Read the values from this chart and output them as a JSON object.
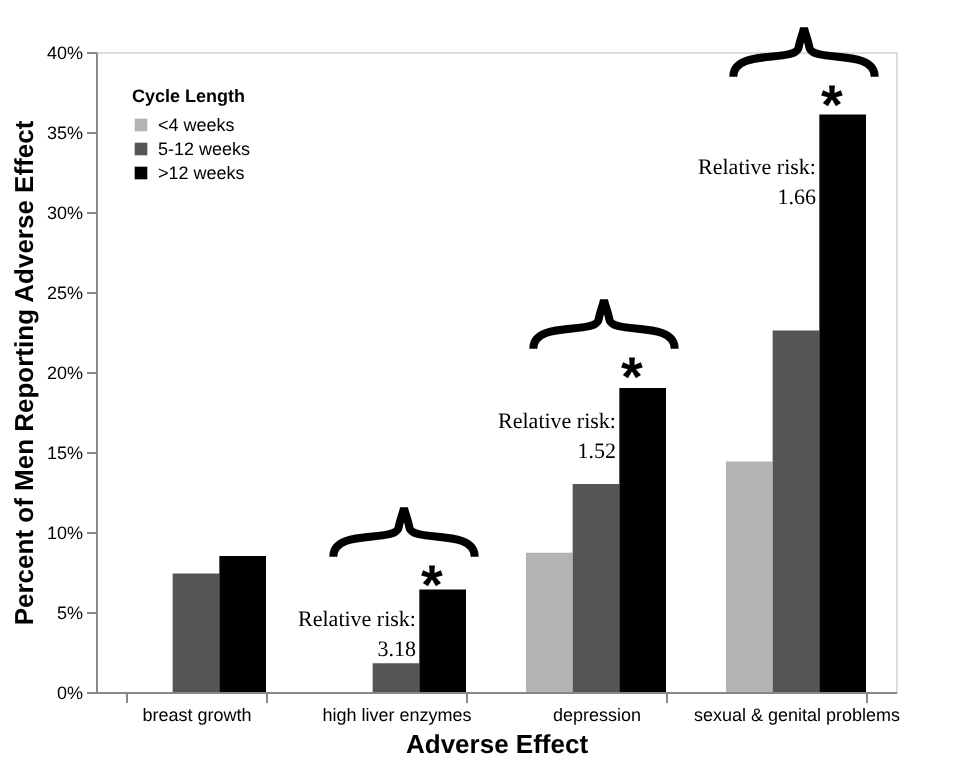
{
  "chart_data": {
    "type": "bar",
    "xlabel": "Adverse Effect",
    "ylabel": "Percent of Men Reporting Adverse Effect",
    "legend_title": "Cycle Length",
    "legend": "top left",
    "grid": false,
    "categories": [
      "breast growth",
      "high liver enzymes",
      "depression",
      "sexual & genital problems"
    ],
    "series": [
      {
        "name": "<4 weeks",
        "color": "#b3b3b3",
        "values": [
          null,
          null,
          8.7,
          14.4
        ]
      },
      {
        "name": "5-12 weeks",
        "color": "#555555",
        "values": [
          7.4,
          1.8,
          13.0,
          22.6
        ]
      },
      {
        "name": ">12 weeks",
        "color": "#000000",
        "values": [
          8.5,
          6.4,
          19.0,
          36.1
        ]
      }
    ],
    "ylim": [
      0,
      40
    ],
    "yticks": [
      {
        "value": 0,
        "label": "0%"
      },
      {
        "value": 5,
        "label": "5%"
      },
      {
        "value": 10,
        "label": "10%"
      },
      {
        "value": 15,
        "label": "15%"
      },
      {
        "value": 20,
        "label": "20%"
      },
      {
        "value": 25,
        "label": "25%"
      },
      {
        "value": 30,
        "label": "30%"
      },
      {
        "value": 35,
        "label": "35%"
      },
      {
        "value": 40,
        "label": "40%"
      }
    ],
    "annotations": [
      "*",
      "Relative risk:\n3.18",
      "*",
      "Relative risk:\n1.52",
      "*",
      "Relative risk:\n1.66"
    ]
  }
}
